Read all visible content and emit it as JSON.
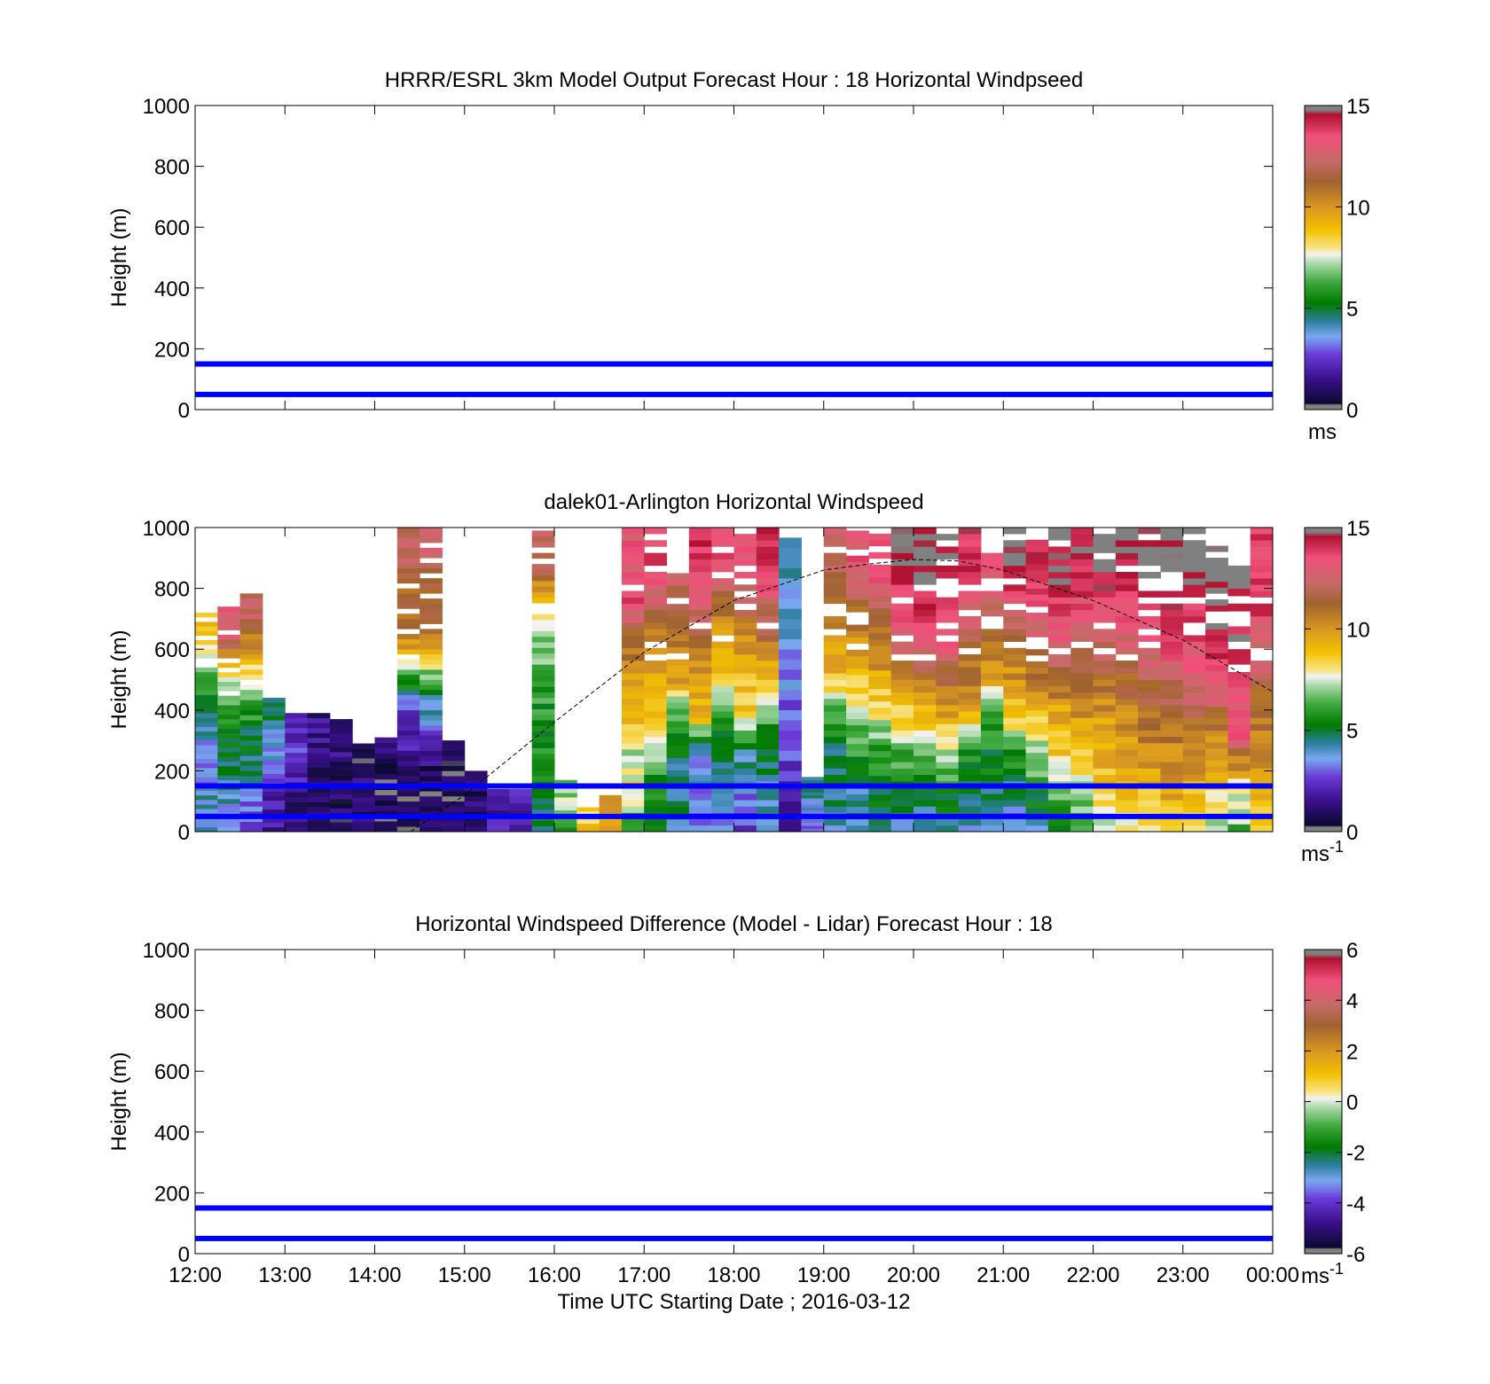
{
  "figure": {
    "xaxis_label": "Time UTC  Starting Date ; 2016-03-12",
    "x_ticks": [
      "12:00",
      "13:00",
      "14:00",
      "15:00",
      "16:00",
      "17:00",
      "18:00",
      "19:00",
      "20:00",
      "21:00",
      "22:00",
      "23:00",
      "00:00"
    ]
  },
  "colors": {
    "model_height_lines": "#0000ff",
    "background": "#ffffff"
  },
  "chart_data": [
    {
      "id": "model",
      "type": "heatmap",
      "title": "HRRR/ESRL 3km Model Output   Forecast Hour : 18 Horizontal Windpseed",
      "xlabel": "",
      "ylabel": "Height (m)",
      "xlim": [
        12,
        24
      ],
      "ylim": [
        0,
        1000
      ],
      "yticks": [
        0,
        200,
        400,
        600,
        800,
        1000
      ],
      "show_x_tick_labels": false,
      "reference_lines_m": [
        50,
        150
      ],
      "colorbar": {
        "min": 0,
        "max": 15,
        "ticks": [
          0,
          5,
          10,
          15
        ],
        "unit": "ms",
        "unit_exp": ""
      },
      "cells": []
    },
    {
      "id": "lidar",
      "type": "heatmap",
      "title": "dalek01-Arlington  Horizontal Windspeed",
      "xlabel": "",
      "ylabel": "Height (m)",
      "xlim": [
        12,
        24
      ],
      "ylim": [
        0,
        1000
      ],
      "yticks": [
        0,
        200,
        400,
        600,
        800,
        1000
      ],
      "show_x_tick_labels": false,
      "reference_lines_m": [
        50,
        150
      ],
      "colorbar": {
        "min": 0,
        "max": 15,
        "ticks": [
          0,
          5,
          10,
          15
        ],
        "unit": "ms",
        "unit_exp": "-1"
      },
      "column_width_h": 0.25,
      "columns": [
        {
          "t": 12.0,
          "top": 720,
          "v": [
            4.0,
            4.0,
            3.5,
            3.5,
            4.5,
            5.5,
            6.5,
            9.0
          ]
        },
        {
          "t": 12.25,
          "top": 740,
          "v": [
            3.5,
            4.0,
            4.5,
            5.0,
            5.5,
            7.0,
            9.5,
            13.0
          ]
        },
        {
          "t": 12.5,
          "top": 800,
          "v": [
            2.5,
            3.5,
            4.5,
            5.0,
            6.0,
            7.5,
            10.0,
            12.0
          ]
        },
        {
          "t": 12.75,
          "top": 440,
          "v": [
            1.5,
            2.0,
            3.0,
            3.5,
            4.5
          ]
        },
        {
          "t": 13.0,
          "top": 390,
          "v": [
            1.0,
            1.5,
            2.0,
            2.5
          ]
        },
        {
          "t": 13.25,
          "top": 390,
          "v": [
            0.5,
            1.0,
            1.0,
            1.5
          ]
        },
        {
          "t": 13.5,
          "top": 370,
          "v": [
            0.8,
            1.0,
            1.2,
            1.5
          ]
        },
        {
          "t": 13.75,
          "top": 290,
          "v": [
            1.2,
            1.0,
            1.0
          ]
        },
        {
          "t": 14.0,
          "top": 310,
          "v": [
            0.8,
            0.5,
            1.0
          ]
        },
        {
          "t": 14.25,
          "top": 1000,
          "v": [
            1.0,
            0.5,
            1.5,
            2.0,
            3.0,
            6.0,
            9.5,
            11.0,
            11.0,
            12.0
          ]
        },
        {
          "t": 14.5,
          "top": 1000,
          "v": [
            0.8,
            0.5,
            1.0,
            2.5,
            4.0,
            6.5,
            10.0,
            11.0,
            11.0,
            12.5
          ]
        },
        {
          "t": 14.75,
          "top": 300,
          "v": [
            1.0,
            0.5,
            1.0
          ]
        },
        {
          "t": 15.0,
          "top": 200,
          "v": [
            1.5,
            1.0
          ]
        },
        {
          "t": 15.25,
          "top": 140,
          "v": [
            2.0
          ]
        },
        {
          "t": 15.5,
          "top": 140,
          "v": [
            2.0
          ]
        },
        {
          "t": 15.75,
          "top": 990,
          "v": [
            4.5,
            5.0,
            6.0,
            5.5,
            6.0,
            6.5,
            7.0,
            9.5,
            12.0
          ]
        },
        {
          "t": 16.0,
          "top": 170,
          "v": [
            6.0,
            7.0
          ]
        },
        {
          "t": 16.25,
          "top": 80,
          "v": [
            8.5
          ]
        },
        {
          "t": 16.5,
          "top": 120,
          "v": [
            9.5
          ]
        },
        {
          "t": 16.75,
          "top": 1000,
          "v": [
            5.5,
            8.0,
            7.5,
            9.0,
            10.0,
            11.0,
            13.5,
            13.0
          ]
        },
        {
          "t": 17.0,
          "top": 1000,
          "v": [
            5.0,
            5.5,
            7.0,
            8.5,
            9.5,
            10.0,
            12.5,
            13.5
          ]
        },
        {
          "t": 17.25,
          "top": 850,
          "v": [
            4.5,
            4.5,
            5.0,
            6.0,
            9.5,
            10.5,
            12.0
          ]
        },
        {
          "t": 17.5,
          "top": 1000,
          "v": [
            3.5,
            3.5,
            4.0,
            9.0,
            9.5,
            11.0,
            12.5,
            14.0
          ]
        },
        {
          "t": 17.75,
          "top": 1000,
          "v": [
            3.0,
            4.0,
            5.0,
            6.0,
            8.5,
            9.5,
            11.0,
            13.5
          ]
        },
        {
          "t": 18.0,
          "top": 1000,
          "v": [
            2.5,
            3.5,
            4.5,
            8.5,
            9.0,
            10.0,
            12.0,
            13.0
          ]
        },
        {
          "t": 18.25,
          "top": 1000,
          "v": [
            3.5,
            4.0,
            5.0,
            6.5,
            9.0,
            11.0,
            12.5,
            14.0
          ]
        },
        {
          "t": 18.5,
          "top": 1000,
          "v": [
            2.0,
            2.5,
            3.0,
            3.5,
            4.0
          ]
        },
        {
          "t": 18.75,
          "top": 180,
          "v": [
            2.5,
            3.5,
            4.5
          ]
        },
        {
          "t": 19.0,
          "top": 1000,
          "v": [
            4.0,
            4.5,
            5.0,
            6.0,
            9.0,
            9.5,
            11.0,
            12.0
          ]
        },
        {
          "t": 19.25,
          "top": 990,
          "v": [
            4.5,
            4.5,
            6.0,
            7.0,
            9.0,
            10.0,
            11.5,
            13.0
          ]
        },
        {
          "t": 19.5,
          "top": 980,
          "v": [
            4.5,
            5.0,
            6.0,
            7.5,
            9.5,
            10.5,
            12.0,
            13.5
          ]
        },
        {
          "t": 19.75,
          "top": 1000,
          "v": [
            4.0,
            5.0,
            6.5,
            8.5,
            10.5,
            12.5,
            13.5,
            15.0
          ]
        },
        {
          "t": 20.0,
          "top": 1000,
          "v": [
            4.5,
            5.0,
            6.5,
            9.0,
            11.0,
            13.0,
            14.0,
            15.0
          ]
        },
        {
          "t": 20.25,
          "top": 1000,
          "v": [
            4.5,
            5.5,
            7.0,
            9.5,
            11.5,
            13.5,
            14.0,
            14.5
          ]
        },
        {
          "t": 20.5,
          "top": 1000,
          "v": [
            4.0,
            5.0,
            5.5,
            9.5,
            10.5,
            11.5,
            13.0,
            14.0
          ]
        },
        {
          "t": 20.75,
          "top": 1000,
          "v": [
            3.5,
            4.5,
            5.5,
            6.5,
            9.5,
            11.0,
            12.0,
            13.5
          ]
        },
        {
          "t": 21.0,
          "top": 1000,
          "v": [
            3.0,
            4.5,
            6.0,
            8.5,
            10.0,
            11.0,
            13.5,
            14.5
          ]
        },
        {
          "t": 21.25,
          "top": 960,
          "v": [
            4.0,
            5.5,
            7.0,
            8.5,
            10.5,
            12.0,
            13.0,
            14.0
          ]
        },
        {
          "t": 21.5,
          "top": 1000,
          "v": [
            5.5,
            6.5,
            8.5,
            9.5,
            11.0,
            13.0,
            13.5,
            14.5
          ]
        },
        {
          "t": 21.75,
          "top": 1000,
          "v": [
            6.0,
            7.5,
            9.0,
            10.0,
            11.5,
            12.0,
            13.5,
            14.0
          ]
        },
        {
          "t": 22.0,
          "top": 1000,
          "v": [
            7.0,
            8.5,
            9.5,
            10.0,
            11.0,
            12.0,
            13.5,
            15.0
          ]
        },
        {
          "t": 22.25,
          "top": 1000,
          "v": [
            8.0,
            9.0,
            9.5,
            10.5,
            11.5,
            12.5,
            13.5,
            14.5
          ]
        },
        {
          "t": 22.5,
          "top": 1000,
          "v": [
            8.5,
            9.0,
            10.0,
            11.0,
            12.0,
            13.0,
            14.0,
            15.0
          ]
        },
        {
          "t": 22.75,
          "top": 1000,
          "v": [
            8.5,
            9.5,
            10.5,
            11.0,
            12.5,
            13.5,
            14.0,
            15.0
          ]
        },
        {
          "t": 23.0,
          "top": 1000,
          "v": [
            7.5,
            9.0,
            10.5,
            11.5,
            13.0,
            13.5,
            14.0,
            15.5
          ]
        },
        {
          "t": 23.25,
          "top": 940,
          "v": [
            7.0,
            8.5,
            9.5,
            11.0,
            13.0,
            14.0,
            14.5,
            15.0
          ]
        },
        {
          "t": 23.5,
          "top": 900,
          "v": [
            6.5,
            8.5,
            13.0,
            13.5,
            14.0,
            14.5
          ]
        },
        {
          "t": 23.75,
          "top": 1000,
          "v": [
            8.5,
            9.0,
            10.5,
            11.0,
            12.0,
            12.5,
            14.0,
            13.5
          ]
        }
      ],
      "dashed_curve": [
        [
          14.4,
          0
        ],
        [
          15.0,
          120
        ],
        [
          16.0,
          360
        ],
        [
          17.0,
          590
        ],
        [
          18.0,
          760
        ],
        [
          19.0,
          860
        ],
        [
          19.5,
          880
        ],
        [
          20.0,
          895
        ],
        [
          20.5,
          890
        ],
        [
          21.0,
          860
        ],
        [
          22.0,
          760
        ],
        [
          23.0,
          630
        ],
        [
          24.0,
          460
        ]
      ]
    },
    {
      "id": "difference",
      "type": "heatmap",
      "title": "Horizontal Windspeed Difference (Model - Lidar) Forecast Hour : 18",
      "xlabel": "Time UTC  Starting Date ; 2016-03-12",
      "ylabel": "Height (m)",
      "xlim": [
        12,
        24
      ],
      "ylim": [
        0,
        1000
      ],
      "yticks": [
        0,
        200,
        400,
        600,
        800,
        1000
      ],
      "show_x_tick_labels": true,
      "reference_lines_m": [
        50,
        150
      ],
      "colorbar": {
        "min": -6,
        "max": 6,
        "ticks": [
          -6,
          -4,
          -2,
          0,
          2,
          4,
          6
        ],
        "unit": "ms",
        "unit_exp": "-1"
      },
      "cells": []
    }
  ]
}
